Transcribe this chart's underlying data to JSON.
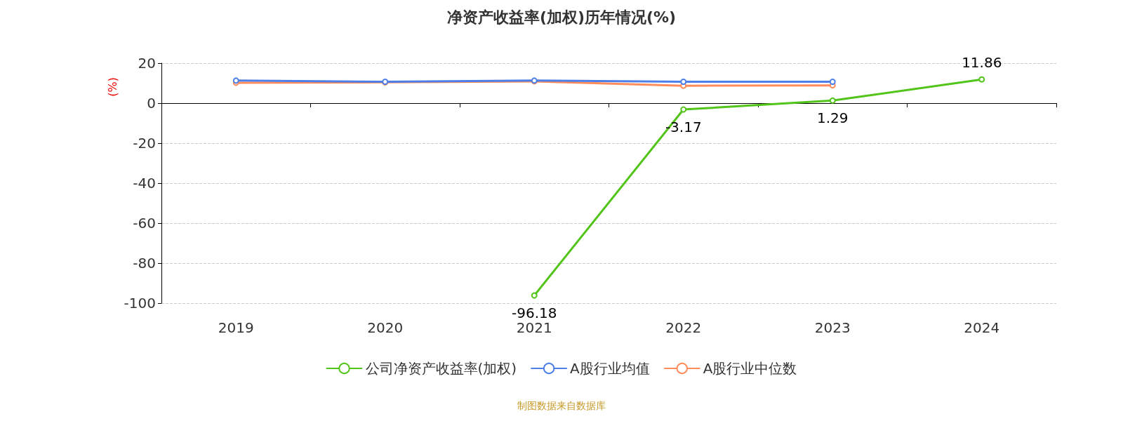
{
  "chart_data": {
    "type": "line",
    "title": "净资产收益率(加权)历年情况(%)",
    "ylabel": "(%)",
    "categories": [
      "2019",
      "2020",
      "2021",
      "2022",
      "2023",
      "2024"
    ],
    "series": [
      {
        "name": "公司净资产收益率(加权)",
        "color": "#52c41a",
        "values": [
          null,
          null,
          -96.18,
          -3.17,
          1.29,
          11.86
        ],
        "value_labels": [
          null,
          null,
          "-96.18",
          "-3.17",
          "1.29",
          "11.86"
        ]
      },
      {
        "name": "A股行业均值",
        "color": "#4e7fe8",
        "values": [
          11.3,
          10.7,
          11.3,
          10.7,
          10.7,
          null
        ]
      },
      {
        "name": "A股行业中位数",
        "color": "#ff8c5a",
        "values": [
          10.2,
          10.4,
          10.9,
          8.7,
          8.9,
          null
        ]
      }
    ],
    "ylim": [
      -100,
      20
    ],
    "yticks": [
      -100,
      -80,
      -60,
      -40,
      -20,
      0,
      20
    ],
    "grid": "y",
    "legend": "bottom",
    "marker": "circle",
    "annotations": [
      "制图数据来自数据库"
    ]
  }
}
